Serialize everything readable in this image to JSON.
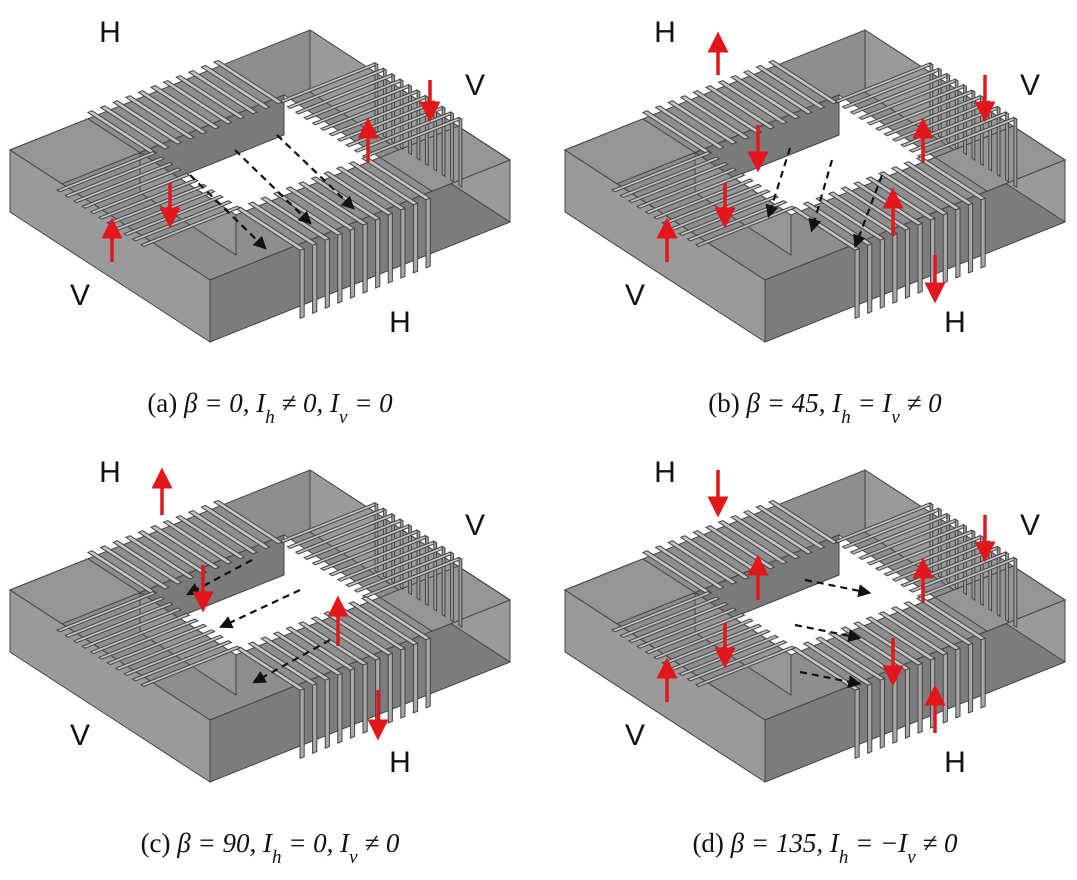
{
  "panels": [
    {
      "labels": [
        "H",
        "V",
        "V",
        "H"
      ],
      "caption": [
        {
          "text": "(a) "
        },
        {
          "math": "β = 0, I"
        },
        {
          "sub": "h"
        },
        {
          "math": " ≠ 0, I"
        },
        {
          "sub": "v"
        },
        {
          "math": " = 0"
        }
      ]
    },
    {
      "labels": [
        "H",
        "V",
        "V",
        "H"
      ],
      "caption": [
        {
          "text": "(b) "
        },
        {
          "math": "β = 45, I"
        },
        {
          "sub": "h"
        },
        {
          "math": " = I"
        },
        {
          "sub": "v"
        },
        {
          "math": " ≠ 0"
        }
      ]
    },
    {
      "labels": [
        "H",
        "V",
        "V",
        "H"
      ],
      "caption": [
        {
          "text": "(c) "
        },
        {
          "math": "β = 90, I"
        },
        {
          "sub": "h"
        },
        {
          "math": " = 0, I"
        },
        {
          "sub": "v"
        },
        {
          "math": " ≠ 0"
        }
      ]
    },
    {
      "labels": [
        "H",
        "V",
        "V",
        "H"
      ],
      "caption": [
        {
          "text": "(d) "
        },
        {
          "math": "β = 135, I"
        },
        {
          "sub": "h"
        },
        {
          "math": " = −I"
        },
        {
          "sub": "v"
        },
        {
          "math": " ≠ 0"
        }
      ]
    }
  ]
}
